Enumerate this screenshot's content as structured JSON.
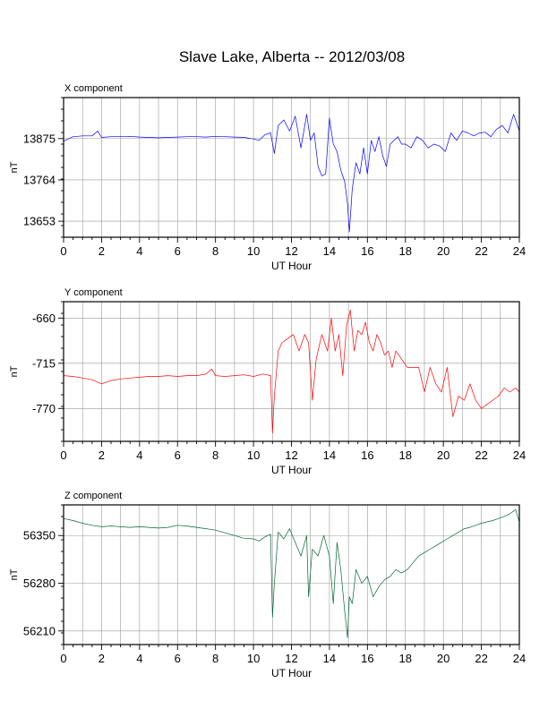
{
  "page_title": "Slave Lake, Alberta -- 2012/03/08",
  "chart_data": [
    {
      "type": "line",
      "title": "X component",
      "xlabel": "UT Hour",
      "ylabel": "nT",
      "xlim": [
        0,
        24
      ],
      "ylim": [
        13610,
        13985
      ],
      "x_ticks": [
        0,
        2,
        4,
        6,
        8,
        10,
        12,
        14,
        16,
        18,
        20,
        22,
        24
      ],
      "y_ticks": [
        13653,
        13764,
        13875
      ],
      "grid": true,
      "color": "#0000ff",
      "series": [
        {
          "x": [
            0,
            0.5,
            1,
            1.5,
            1.8,
            2,
            2.5,
            3,
            3.5,
            4,
            4.5,
            5,
            5.5,
            6,
            6.5,
            7,
            7.5,
            8,
            8.5,
            9,
            9.5,
            10,
            10.3,
            10.6,
            10.9,
            11.1,
            11.3,
            11.6,
            11.9,
            12.2,
            12.5,
            12.8,
            13.0,
            13.2,
            13.4,
            13.6,
            13.8,
            14.0,
            14.2,
            14.4,
            14.6,
            14.8,
            14.95,
            15.05,
            15.2,
            15.4,
            15.6,
            15.8,
            16.0,
            16.2,
            16.4,
            16.6,
            16.8,
            17.0,
            17.2,
            17.4,
            17.6,
            17.8,
            18.0,
            18.3,
            18.6,
            18.9,
            19.2,
            19.5,
            19.8,
            20.1,
            20.4,
            20.7,
            21.0,
            21.3,
            21.6,
            21.9,
            22.2,
            22.5,
            22.8,
            23.1,
            23.4,
            23.7,
            24
          ],
          "y": [
            13868,
            13880,
            13882,
            13882,
            13895,
            13878,
            13880,
            13880,
            13881,
            13879,
            13878,
            13877,
            13878,
            13879,
            13880,
            13880,
            13879,
            13881,
            13880,
            13879,
            13878,
            13874,
            13870,
            13885,
            13890,
            13835,
            13910,
            13925,
            13895,
            13935,
            13850,
            13940,
            13870,
            13890,
            13800,
            13775,
            13780,
            13930,
            13860,
            13840,
            13790,
            13760,
            13700,
            13625,
            13740,
            13810,
            13780,
            13850,
            13780,
            13870,
            13840,
            13880,
            13830,
            13800,
            13860,
            13870,
            13880,
            13860,
            13860,
            13850,
            13880,
            13870,
            13850,
            13860,
            13855,
            13840,
            13890,
            13870,
            13895,
            13890,
            13882,
            13890,
            13892,
            13880,
            13900,
            13910,
            13890,
            13940,
            13895
          ]
        }
      ]
    },
    {
      "type": "line",
      "title": "Y component",
      "xlabel": "UT Hour",
      "ylabel": "nT",
      "xlim": [
        0,
        24
      ],
      "ylim": [
        -810,
        -640
      ],
      "x_ticks": [
        0,
        2,
        4,
        6,
        8,
        10,
        12,
        14,
        16,
        18,
        20,
        22,
        24
      ],
      "y_ticks": [
        -660,
        -715,
        -770
      ],
      "grid": true,
      "color": "#ff0000",
      "series": [
        {
          "x": [
            0,
            0.5,
            1,
            1.5,
            2,
            2.5,
            3,
            3.5,
            4,
            4.5,
            5,
            5.5,
            6,
            6.5,
            7,
            7.5,
            7.8,
            8,
            8.5,
            9,
            9.5,
            10,
            10.5,
            10.9,
            11.0,
            11.1,
            11.3,
            11.5,
            11.8,
            12.1,
            12.4,
            12.7,
            12.9,
            13.1,
            13.3,
            13.6,
            13.9,
            14.1,
            14.3,
            14.5,
            14.7,
            14.9,
            15.1,
            15.3,
            15.5,
            15.7,
            15.9,
            16.1,
            16.3,
            16.5,
            16.7,
            16.9,
            17.1,
            17.3,
            17.5,
            17.8,
            18.1,
            18.4,
            18.7,
            19.0,
            19.3,
            19.6,
            19.9,
            20.2,
            20.5,
            20.8,
            21.1,
            21.4,
            21.7,
            22.0,
            22.3,
            22.6,
            22.9,
            23.2,
            23.5,
            23.8,
            24
          ],
          "y": [
            -730,
            -731,
            -733,
            -735,
            -740,
            -736,
            -734,
            -733,
            -732,
            -731,
            -731,
            -730,
            -731,
            -730,
            -730,
            -728,
            -722,
            -730,
            -731,
            -730,
            -729,
            -731,
            -728,
            -730,
            -800,
            -755,
            -700,
            -690,
            -685,
            -680,
            -700,
            -680,
            -690,
            -760,
            -710,
            -680,
            -700,
            -660,
            -700,
            -680,
            -730,
            -670,
            -650,
            -700,
            -675,
            -680,
            -665,
            -690,
            -700,
            -680,
            -690,
            -705,
            -700,
            -720,
            -700,
            -710,
            -720,
            -720,
            -720,
            -750,
            -720,
            -740,
            -750,
            -720,
            -780,
            -755,
            -760,
            -740,
            -760,
            -770,
            -765,
            -760,
            -755,
            -745,
            -750,
            -745,
            -750
          ]
        }
      ]
    },
    {
      "type": "line",
      "title": "Z component",
      "xlabel": "UT Hour",
      "ylabel": "nT",
      "xlim": [
        0,
        24
      ],
      "ylim": [
        56190,
        56395
      ],
      "x_ticks": [
        0,
        2,
        4,
        6,
        8,
        10,
        12,
        14,
        16,
        18,
        20,
        22,
        24
      ],
      "y_ticks": [
        56210,
        56280,
        56350
      ],
      "grid": true,
      "color": "#006633",
      "series": [
        {
          "x": [
            0,
            0.5,
            1,
            1.5,
            2,
            2.5,
            3,
            3.5,
            4,
            4.5,
            5,
            5.5,
            6,
            6.5,
            7,
            7.5,
            8,
            8.5,
            9,
            9.5,
            10,
            10.3,
            10.6,
            10.9,
            11.0,
            11.1,
            11.3,
            11.6,
            11.9,
            12.2,
            12.5,
            12.8,
            12.9,
            13.1,
            13.4,
            13.7,
            14.0,
            14.2,
            14.4,
            14.6,
            14.8,
            14.95,
            15.05,
            15.2,
            15.4,
            15.7,
            16.0,
            16.3,
            16.6,
            16.9,
            17.2,
            17.5,
            17.8,
            18.1,
            18.4,
            18.7,
            19.0,
            19.3,
            19.6,
            19.9,
            20.2,
            20.5,
            20.8,
            21.1,
            21.4,
            21.7,
            22.0,
            22.3,
            22.6,
            22.9,
            23.2,
            23.5,
            23.8,
            24
          ],
          "y": [
            56375,
            56372,
            56368,
            56365,
            56363,
            56364,
            56363,
            56362,
            56363,
            56362,
            56361,
            56362,
            56365,
            56364,
            56362,
            56360,
            56358,
            56354,
            56350,
            56346,
            56345,
            56342,
            56348,
            56352,
            56230,
            56280,
            56355,
            56345,
            56360,
            56340,
            56320,
            56350,
            56260,
            56330,
            56320,
            56350,
            56320,
            56250,
            56340,
            56300,
            56240,
            56200,
            56260,
            56250,
            56300,
            56280,
            56290,
            56260,
            56275,
            56285,
            56290,
            56300,
            56295,
            56300,
            56310,
            56320,
            56325,
            56330,
            56335,
            56340,
            56345,
            56350,
            56355,
            56360,
            56362,
            56365,
            56368,
            56370,
            56372,
            56375,
            56378,
            56382,
            56388,
            56370
          ]
        }
      ]
    }
  ]
}
